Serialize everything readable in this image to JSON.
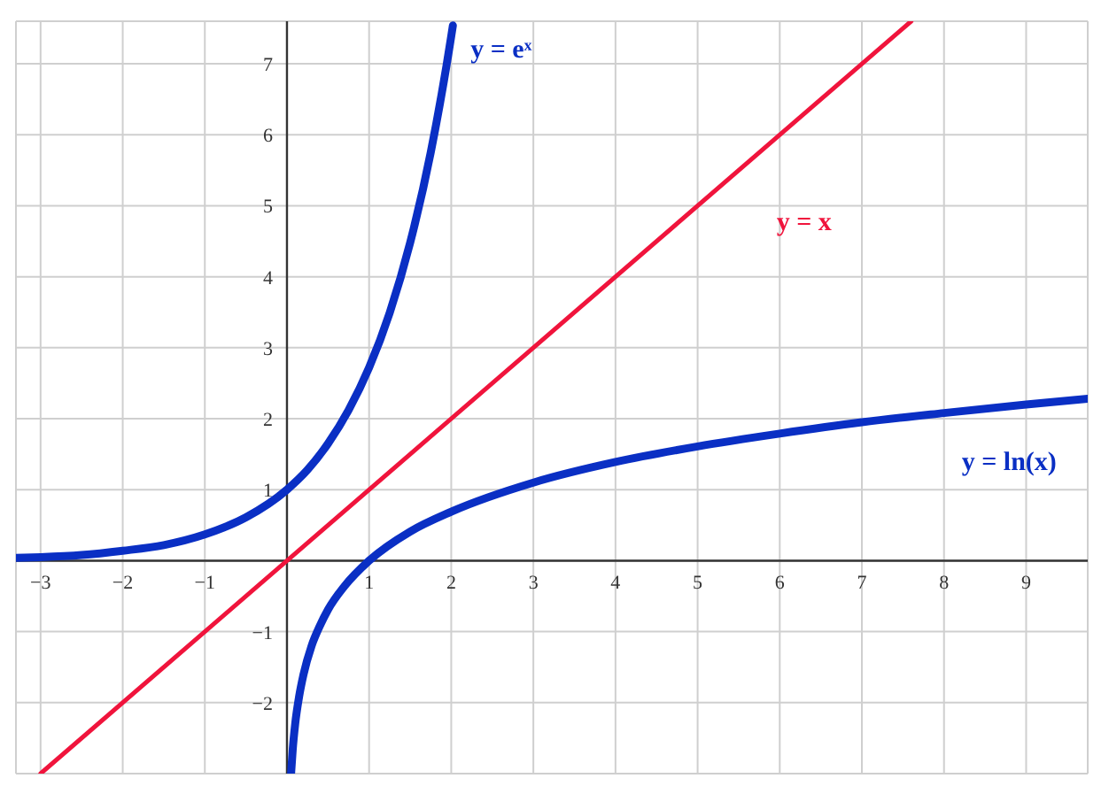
{
  "chart_data": {
    "type": "line",
    "series": [
      {
        "name": "y = eˣ",
        "color": "#0a2fc4",
        "x": [
          -3.3,
          -3,
          -2.5,
          -2,
          -1.5,
          -1,
          -0.5,
          0,
          0.25,
          0.5,
          0.75,
          1,
          1.25,
          1.5,
          1.75,
          2,
          2.02
        ],
        "values": [
          0.04,
          0.05,
          0.08,
          0.14,
          0.22,
          0.37,
          0.61,
          1,
          1.28,
          1.65,
          2.12,
          2.72,
          3.49,
          4.48,
          5.75,
          7.39,
          7.54
        ]
      },
      {
        "name": "y = x",
        "color": "#f0143c",
        "x": [
          -3,
          7.6
        ],
        "values": [
          -3,
          7.6
        ]
      },
      {
        "name": "y = ln(x)",
        "color": "#0a2fc4",
        "x": [
          0.05,
          0.07,
          0.1,
          0.15,
          0.2,
          0.3,
          0.4,
          0.5,
          0.7,
          1,
          1.5,
          2,
          3,
          4,
          5,
          6,
          7,
          8,
          9,
          9.75
        ],
        "values": [
          -3.0,
          -2.66,
          -2.3,
          -1.9,
          -1.61,
          -1.2,
          -0.92,
          -0.69,
          -0.36,
          0,
          0.41,
          0.69,
          1.1,
          1.39,
          1.61,
          1.79,
          1.95,
          2.08,
          2.2,
          2.28
        ]
      }
    ],
    "xlim": [
      -3.3,
      9.75
    ],
    "ylim": [
      -3.0,
      7.6
    ],
    "xticks": [
      {
        "value": -3,
        "label": "−3"
      },
      {
        "value": -2,
        "label": "−2"
      },
      {
        "value": -1,
        "label": "−1"
      },
      {
        "value": 0,
        "label": null
      },
      1,
      2,
      3,
      4,
      5,
      6,
      7,
      8,
      9
    ],
    "yticks": [
      {
        "value": -2,
        "label": "−2"
      },
      {
        "value": -1,
        "label": "−1"
      },
      {
        "value": 0,
        "label": null
      },
      1,
      2,
      3,
      4,
      5,
      6,
      7
    ],
    "grid": true,
    "legend": false,
    "marker": "none",
    "line_style": "solid"
  }
}
